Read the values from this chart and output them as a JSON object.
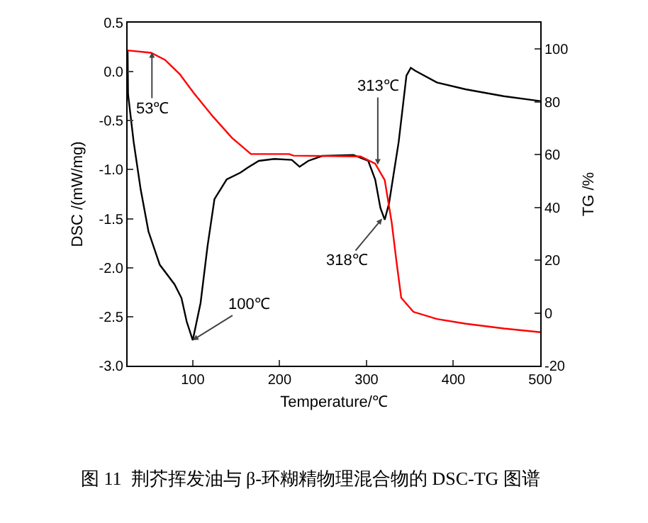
{
  "chart_data": {
    "type": "line",
    "title": "图 11  荆芥挥发油与 β-环糊精物理混合物的 DSC-TG 图谱",
    "xlabel": "Temperature/℃",
    "ylabel": "DSC /(mW/mg)",
    "y2label": "TG /%",
    "xlim": [
      25,
      500
    ],
    "xticks": [
      100,
      200,
      300,
      400,
      500
    ],
    "ylim": [
      -3,
      0.5
    ],
    "yticks": [
      {
        "value": -3,
        "label": "-3.0"
      },
      {
        "value": -2.5,
        "label": "-2.5"
      },
      {
        "value": -2,
        "label": "-2.0"
      },
      {
        "value": -1.5,
        "label": "-1.5"
      },
      {
        "value": -1,
        "label": "-1.0"
      },
      {
        "value": -0.5,
        "label": "-0.5"
      },
      {
        "value": 0,
        "label": "0.0"
      },
      {
        "value": 0.5,
        "label": "0.5"
      }
    ],
    "y2lim": [
      -20,
      110
    ],
    "y2ticks": [
      -20,
      0,
      20,
      40,
      60,
      80,
      100
    ],
    "line_style": "solid",
    "series": [
      {
        "color": "#000000",
        "x": [
          25,
          25.5,
          32,
          40,
          49,
          62,
          79,
          87,
          93,
          100,
          109,
          117,
          125,
          139,
          155,
          163,
          176,
          194,
          214,
          223,
          233,
          249,
          285,
          302,
          310,
          316,
          321,
          326,
          337,
          346,
          351,
          356,
          381,
          414,
          458,
          500
        ],
        "values": [
          0.22,
          -0.23,
          -0.72,
          -1.2,
          -1.63,
          -1.97,
          -2.17,
          -2.31,
          -2.55,
          -2.74,
          -2.36,
          -1.78,
          -1.3,
          -1.1,
          -1.03,
          -0.98,
          -0.91,
          -0.89,
          -0.9,
          -0.97,
          -0.91,
          -0.86,
          -0.85,
          -0.91,
          -1.1,
          -1.39,
          -1.51,
          -1.34,
          -0.72,
          -0.04,
          0.04,
          0.01,
          -0.11,
          -0.18,
          -0.25,
          -0.3
        ]
      },
      {
        "color": "#ff0000",
        "axis": "y2",
        "x": [
          25,
          52,
          68,
          85,
          101,
          123,
          145,
          167,
          211,
          216,
          293,
          310,
          321,
          329,
          335,
          340,
          354,
          381,
          414,
          458,
          500
        ],
        "values": [
          99.5,
          98.6,
          95.9,
          90.5,
          83.4,
          74.5,
          66.4,
          60.2,
          60.2,
          59.6,
          59.3,
          56.6,
          50.3,
          34.3,
          18.2,
          5.7,
          0.4,
          -2.3,
          -4.1,
          -5.9,
          -7.3
        ]
      }
    ],
    "annotations": [
      {
        "text": "53℃",
        "x": 53,
        "y": 0.2
      },
      {
        "text": "100℃",
        "x": 100,
        "y": -2.74
      },
      {
        "text": "313℃",
        "x": 313,
        "y": -0.95
      },
      {
        "text": "318℃",
        "x": 318,
        "y": -1.5
      }
    ]
  }
}
